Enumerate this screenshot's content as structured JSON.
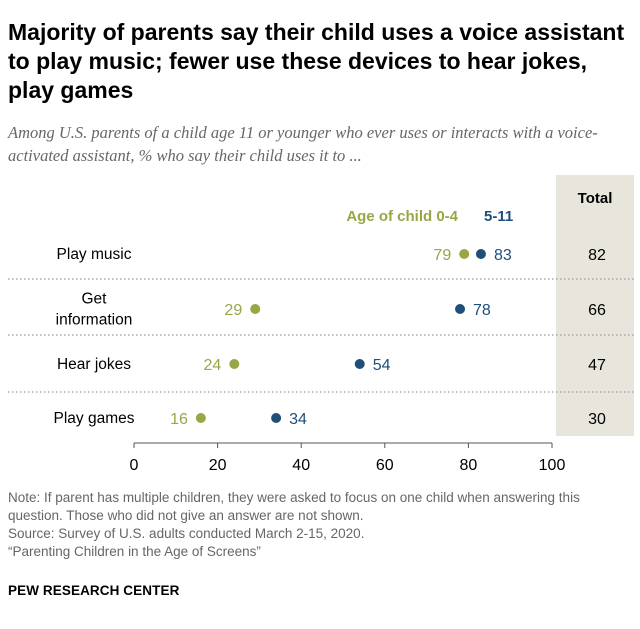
{
  "title": "Majority of parents say their child uses a voice assistant to play music; fewer use these devices to hear jokes, play games",
  "subtitle": "Among U.S. parents of a child age 11 or younger who ever uses or interacts with a voice-activated assistant, % who say their child uses it to ...",
  "colors": {
    "age_0_4": "#9aa546",
    "age_5_11": "#1f4e79",
    "total_panel": "#e8e5dc",
    "divider": "#9a9a9a"
  },
  "chart_data": {
    "type": "dot",
    "legend_title": "Age of child",
    "total_header": "Total",
    "categories": [
      "Play music",
      "Get information",
      "Hear jokes",
      "Play games"
    ],
    "category_lines": [
      [
        "Play music"
      ],
      [
        "Get",
        "information"
      ],
      [
        "Hear jokes"
      ],
      [
        "Play games"
      ]
    ],
    "series": [
      {
        "name": "0-4",
        "legend_label": "Age of child 0-4",
        "values": [
          79,
          29,
          24,
          16
        ]
      },
      {
        "name": "5-11",
        "legend_label": "5-11",
        "values": [
          83,
          78,
          54,
          34
        ]
      }
    ],
    "totals": [
      82,
      66,
      47,
      30
    ],
    "xlim": [
      0,
      100
    ],
    "xticks": [
      0,
      20,
      40,
      60,
      80,
      100
    ],
    "xlabel": "",
    "ylabel": ""
  },
  "notes": [
    "Note: If parent has multiple children, they were asked to focus on one child when answering this question. Those who did not give an answer are not shown.",
    "Source: Survey of U.S. adults conducted March 2-15, 2020.",
    "“Parenting Children in the Age of Screens”"
  ],
  "brand": "PEW RESEARCH CENTER"
}
